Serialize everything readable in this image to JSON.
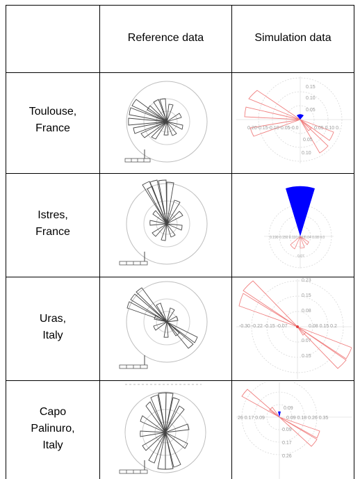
{
  "headers": {
    "reference": "Reference data",
    "simulation": "Simulation data"
  },
  "rows": [
    {
      "label_lines": [
        "Toulouse,",
        "France"
      ],
      "sim_ticks": {
        "up": [
          "0.15",
          "0.10",
          "0.05"
        ],
        "down": [
          "0.05",
          "0.10"
        ],
        "left": "0.20-0.15-0.10-0.05-0.0",
        "right": "0.05 0.10 0."
      }
    },
    {
      "label_lines": [
        "Istres,",
        "France"
      ],
      "sim_ticks": {
        "up": [],
        "down": [
          "0.07"
        ],
        "left": "0.190 0.150 0.110 0.07",
        "right": "0.04 0.08 0.0"
      }
    },
    {
      "label_lines": [
        "Uras,",
        "Italy"
      ],
      "sim_ticks": {
        "up": [
          "0.23",
          "0.15",
          "0.08"
        ],
        "down": [
          "0.07",
          "0.15"
        ],
        "left": "-0.30 -0.22 -0.15 -0.07",
        "right": "0.08 0.15 0.2"
      }
    },
    {
      "label_lines": [
        "Capo",
        "Palinuro,",
        "Italy"
      ],
      "sim_ticks": {
        "up": [
          "0.09"
        ],
        "down": [
          "0.09",
          "0.17",
          "0.26"
        ],
        "left": "26 0.17 0.09",
        "right": "0.09 0.18 0.26 0.35"
      }
    }
  ],
  "colors": {
    "grid": "#000000",
    "reference_stroke": "#444444",
    "reference_circle": "#bdbdbd",
    "simulation_stroke": "#f08080",
    "simulation_circle": "#d8d8d8",
    "simulation_fill": "#0000ff"
  }
}
